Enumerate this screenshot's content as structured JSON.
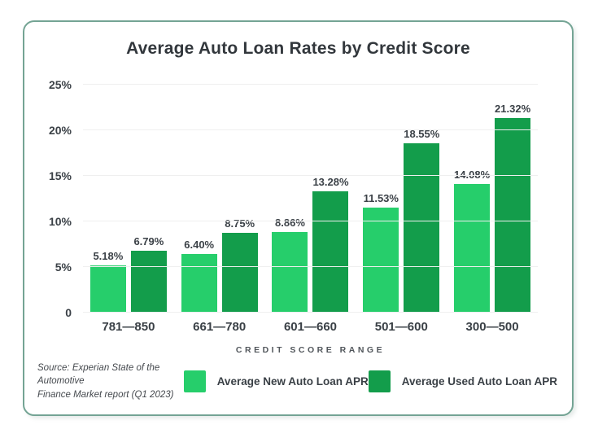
{
  "card": {
    "title": "Average Auto Loan Rates by Credit Score"
  },
  "chart_data": {
    "type": "bar",
    "title": "Average Auto Loan Rates by Credit Score",
    "categories": [
      "781—850",
      "661—780",
      "601—660",
      "501—600",
      "300—500"
    ],
    "series": [
      {
        "name": "Average New Auto Loan APR",
        "color": "#26ce6b",
        "values": [
          5.18,
          6.4,
          8.86,
          11.53,
          14.08
        ],
        "labels": [
          "5.18%",
          "6.40%",
          "8.86%",
          "11.53%",
          "14.08%"
        ]
      },
      {
        "name": "Average Used Auto Loan APR",
        "color": "#139d4b",
        "values": [
          6.79,
          8.75,
          13.28,
          18.55,
          21.32
        ],
        "labels": [
          "6.79%",
          "8.75%",
          "13.28%",
          "18.55%",
          "21.32%"
        ]
      }
    ],
    "xlabel": "CREDIT SCORE RANGE",
    "ylabel": "",
    "ylim": [
      0,
      25
    ],
    "yticks": [
      {
        "value": 0,
        "label": "0"
      },
      {
        "value": 5,
        "label": "5%"
      },
      {
        "value": 10,
        "label": "10%"
      },
      {
        "value": 15,
        "label": "15%"
      },
      {
        "value": 20,
        "label": "20%"
      },
      {
        "value": 25,
        "label": "25%"
      }
    ],
    "grid": true,
    "legend_position": "bottom"
  },
  "footer": {
    "source_line1": "Source: Experian State of the Automotive",
    "source_line2": "Finance Market report (Q1 2023)"
  },
  "colors": {
    "new_apr": "#26ce6b",
    "used_apr": "#139d4b",
    "card_border": "#74a494",
    "gridline": "#efefef",
    "text_dark": "#3a4046"
  }
}
